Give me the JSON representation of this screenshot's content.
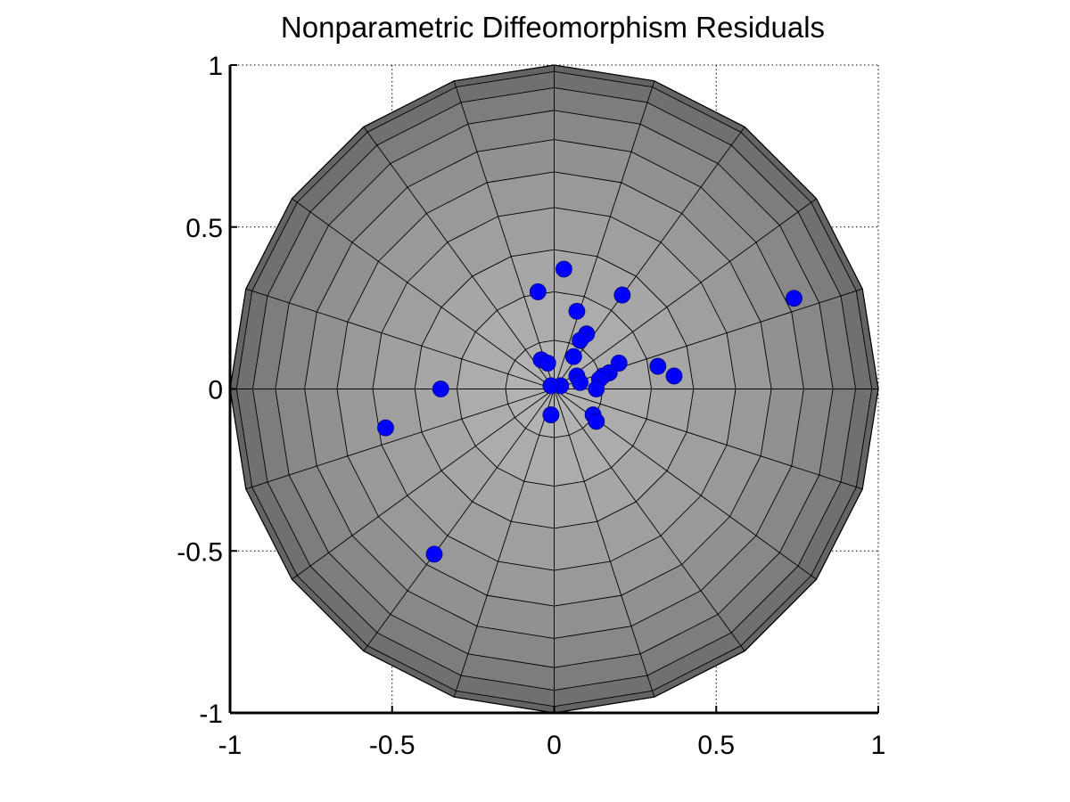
{
  "chart_data": {
    "type": "scatter",
    "title": "Nonparametric Diffeomorphism Residuals",
    "xlabel": "",
    "ylabel": "",
    "xlim": [
      -1,
      1
    ],
    "ylim": [
      -1,
      1
    ],
    "grid": true,
    "xticks": [
      -1,
      -0.5,
      0,
      0.5,
      1
    ],
    "yticks": [
      -1,
      -0.5,
      0,
      0.5,
      1
    ],
    "xtick_labels": [
      "-1",
      "-0.5",
      "0",
      "0.5",
      "1"
    ],
    "ytick_labels": [
      "-1",
      "-0.5",
      "0",
      "0.5",
      "1"
    ],
    "background": {
      "shape": "polygon-disk",
      "sides": 20,
      "rings": [
        0.15,
        0.3,
        0.43,
        0.56,
        0.67,
        0.77,
        0.86,
        0.93,
        0.98,
        1.0
      ],
      "ring_colors": [
        "#b2b2b2",
        "#acacac",
        "#a6a6a6",
        "#9f9f9f",
        "#999999",
        "#919191",
        "#888888",
        "#7d7d7d",
        "#707070",
        "#646464"
      ],
      "mesh_color": "#000000"
    },
    "marker_color": "#0000ff",
    "points": [
      {
        "x": 0.03,
        "y": 0.37
      },
      {
        "x": -0.05,
        "y": 0.3
      },
      {
        "x": 0.21,
        "y": 0.29
      },
      {
        "x": 0.74,
        "y": 0.28
      },
      {
        "x": 0.07,
        "y": 0.24
      },
      {
        "x": 0.1,
        "y": 0.17
      },
      {
        "x": 0.08,
        "y": 0.15
      },
      {
        "x": 0.06,
        "y": 0.1
      },
      {
        "x": -0.04,
        "y": 0.09
      },
      {
        "x": -0.02,
        "y": 0.08
      },
      {
        "x": 0.2,
        "y": 0.08
      },
      {
        "x": 0.32,
        "y": 0.07
      },
      {
        "x": 0.37,
        "y": 0.04
      },
      {
        "x": 0.17,
        "y": 0.05
      },
      {
        "x": 0.15,
        "y": 0.04
      },
      {
        "x": 0.07,
        "y": 0.04
      },
      {
        "x": 0.08,
        "y": 0.02
      },
      {
        "x": 0.14,
        "y": 0.03
      },
      {
        "x": 0.13,
        "y": 0.0
      },
      {
        "x": 0.02,
        "y": 0.01
      },
      {
        "x": -0.01,
        "y": 0.01
      },
      {
        "x": -0.35,
        "y": 0.0
      },
      {
        "x": -0.01,
        "y": -0.08
      },
      {
        "x": 0.12,
        "y": -0.08
      },
      {
        "x": 0.13,
        "y": -0.1
      },
      {
        "x": -0.52,
        "y": -0.12
      },
      {
        "x": -0.37,
        "y": -0.51
      }
    ]
  }
}
